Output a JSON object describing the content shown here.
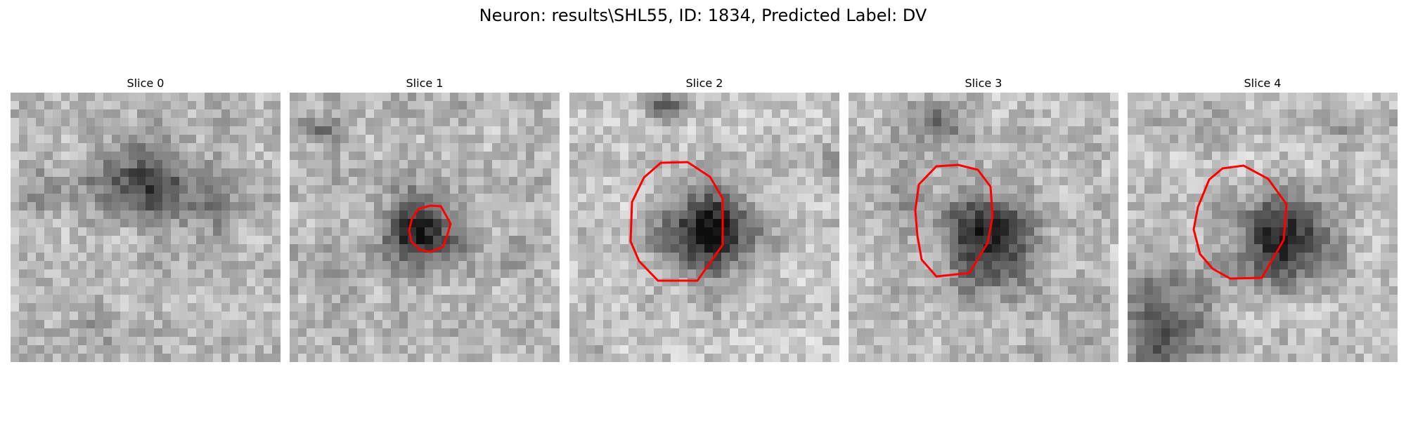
{
  "figure": {
    "title": "Neuron: results\\SHL55, ID: 1834, Predicted Label: DV"
  },
  "panels": [
    {
      "title": "Slice 0"
    },
    {
      "title": "Slice 1"
    },
    {
      "title": "Slice 2"
    },
    {
      "title": "Slice 3"
    },
    {
      "title": "Slice 4"
    }
  ],
  "colors": {
    "contour": "#ff0000",
    "colormap": "grayscale"
  }
}
